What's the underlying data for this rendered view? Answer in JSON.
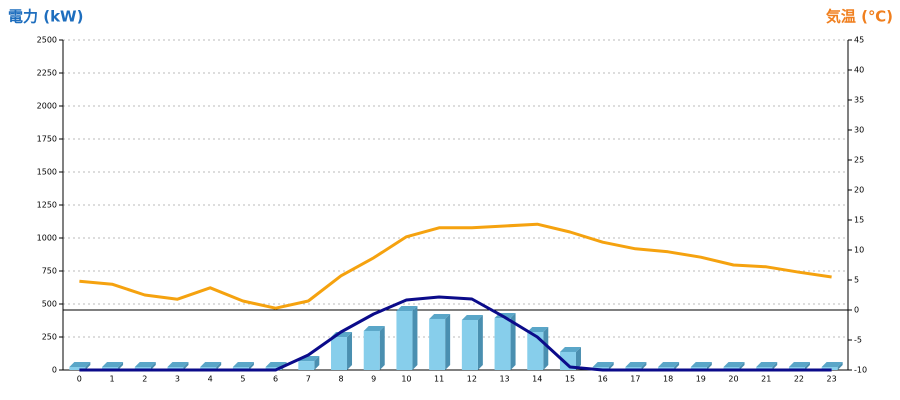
{
  "chart_data": {
    "type": "combo",
    "y_title": "電力 (kW)",
    "y2_title": "気温 (℃)",
    "y_title_color": "#1e6ebe",
    "y2_title_color": "#f07f1e",
    "categories": [
      "0",
      "1",
      "2",
      "3",
      "4",
      "5",
      "6",
      "7",
      "8",
      "9",
      "10",
      "11",
      "12",
      "13",
      "14",
      "15",
      "16",
      "17",
      "18",
      "19",
      "20",
      "21",
      "22",
      "23"
    ],
    "series": [
      {
        "type": "bar",
        "color": "#87ceeb",
        "values": [
          0,
          0,
          0,
          0,
          0,
          0,
          0,
          45,
          227,
          273,
          424,
          364,
          356,
          371,
          265,
          114,
          0,
          0,
          0,
          0,
          0,
          0,
          0,
          0
        ]
      },
      {
        "type": "line",
        "color": "#0b0b8a",
        "values": [
          0,
          0,
          0,
          0,
          0,
          0,
          0,
          114,
          288,
          424,
          530,
          553,
          538,
          400,
          250,
          23,
          0,
          0,
          0,
          0,
          0,
          0,
          0,
          0
        ]
      },
      {
        "type": "line",
        "axis": "y2",
        "color": "#f5a20f",
        "values": [
          4.8,
          4.3,
          2.5,
          1.8,
          3.7,
          1.5,
          0.3,
          1.5,
          5.7,
          8.7,
          12.2,
          13.7,
          13.7,
          14,
          14.3,
          13,
          11.3,
          10.2,
          9.7,
          8.8,
          7.5,
          7.2,
          6.3,
          5.5
        ]
      }
    ],
    "ylim": [
      0,
      2500
    ],
    "yticks": [
      0,
      250,
      500,
      750,
      1000,
      1250,
      1500,
      1750,
      2000,
      2250,
      2500
    ],
    "y2lim": [
      -10,
      45
    ],
    "y2ticks": [
      -10,
      -5,
      0,
      5,
      10,
      15,
      20,
      25,
      30,
      35,
      40,
      45
    ],
    "grid": true
  }
}
